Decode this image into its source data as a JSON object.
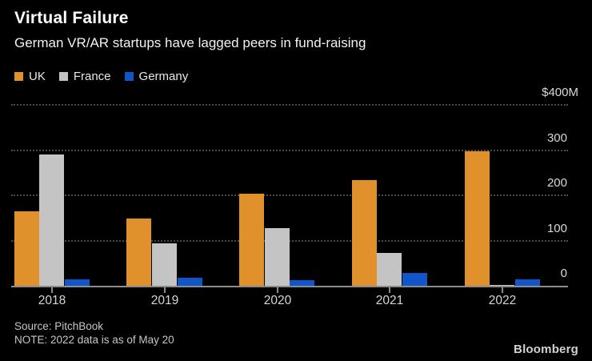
{
  "header": {
    "title": "Virtual Failure",
    "subtitle": "German VR/AR startups have lagged peers in fund-raising"
  },
  "legend": [
    {
      "label": "UK",
      "color": "#e0912c"
    },
    {
      "label": "France",
      "color": "#c4c4c4"
    },
    {
      "label": "Germany",
      "color": "#1156c9"
    }
  ],
  "chart_data": {
    "type": "bar",
    "title": "Virtual Failure",
    "subtitle": "German VR/AR startups have lagged peers in fund-raising",
    "categories": [
      "2018",
      "2019",
      "2020",
      "2021",
      "2022"
    ],
    "series": [
      {
        "name": "UK",
        "color": "#e0912c",
        "values": [
          165,
          148,
          203,
          233,
          298
        ]
      },
      {
        "name": "France",
        "color": "#c4c4c4",
        "values": [
          291,
          93,
          128,
          73,
          2
        ]
      },
      {
        "name": "Germany",
        "color": "#1156c9",
        "values": [
          14,
          18,
          12,
          29,
          14
        ]
      }
    ],
    "unit": "$M",
    "ylim": [
      0,
      400
    ],
    "yticks": [
      0,
      100,
      200,
      300,
      400
    ],
    "ytick_labels": [
      "0",
      "100",
      "200",
      "300",
      "$400M"
    ],
    "grid": "horizontal dotted",
    "legend_position": "top-left",
    "y_axis_side": "right"
  },
  "footer": {
    "source": "Source: PitchBook",
    "note": "NOTE: 2022 data is as of May 20",
    "brand": "Bloomberg"
  },
  "colors": {
    "background": "#000000",
    "title": "#ffffff",
    "subtitle": "#f2f2f2",
    "gridline": "#4c4c4c",
    "axis_line": "#8c8c8c",
    "axis_label": "#d9d9d9",
    "source_text": "#c7c7c7",
    "brand_text": "#d2d2d2"
  }
}
